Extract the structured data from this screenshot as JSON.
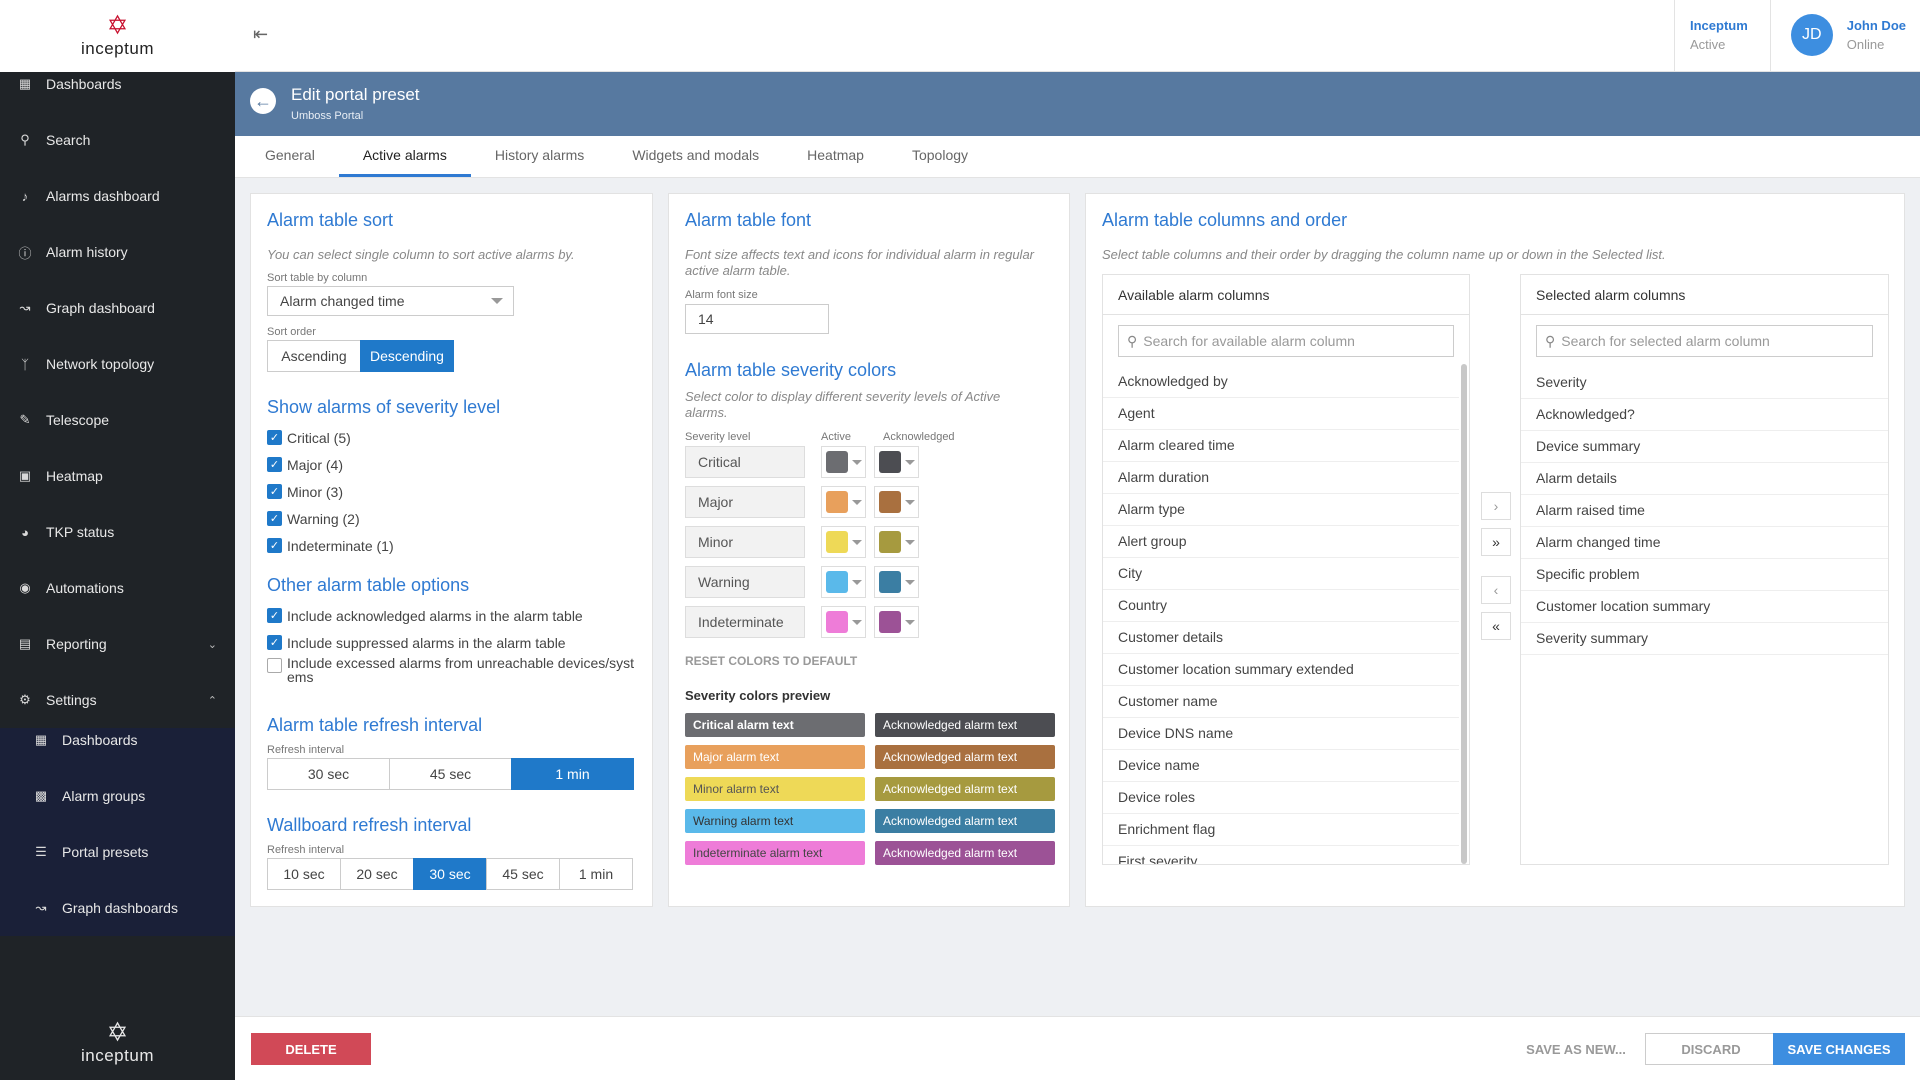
{
  "brand": {
    "logo_text": "inceptum"
  },
  "sidebar": {
    "items": [
      {
        "label": "Dashboards",
        "icon": "grid-icon"
      },
      {
        "label": "Search",
        "icon": "search-icon"
      },
      {
        "label": "Alarms dashboard",
        "icon": "bell-icon"
      },
      {
        "label": "Alarm history",
        "icon": "info-icon"
      },
      {
        "label": "Graph dashboard",
        "icon": "chart-icon"
      },
      {
        "label": "Network topology",
        "icon": "topology-icon"
      },
      {
        "label": "Telescope",
        "icon": "telescope-icon"
      },
      {
        "label": "Heatmap",
        "icon": "map-icon"
      },
      {
        "label": "TKP status",
        "icon": "gauge-icon"
      },
      {
        "label": "Automations",
        "icon": "target-icon"
      },
      {
        "label": "Reporting",
        "icon": "file-icon"
      },
      {
        "label": "Settings",
        "icon": "gear-icon"
      }
    ],
    "settings_sub": [
      {
        "label": "Dashboards",
        "icon": "grid-icon"
      },
      {
        "label": "Alarm groups",
        "icon": "group-icon"
      },
      {
        "label": "Portal presets",
        "icon": "sliders-icon"
      },
      {
        "label": "Graph dashboards",
        "icon": "chart-icon"
      }
    ]
  },
  "topbar": {
    "tenant_name": "Inceptum",
    "tenant_status": "Active",
    "user_initials": "JD",
    "user_name": "John Doe",
    "user_status": "Online"
  },
  "header": {
    "title": "Edit portal preset",
    "subtitle": "Umboss Portal"
  },
  "tabs": [
    "General",
    "Active alarms",
    "History alarms",
    "Widgets and modals",
    "Heatmap",
    "Topology"
  ],
  "sort": {
    "title": "Alarm table sort",
    "desc": "You can select single column to sort active alarms by.",
    "column_label": "Sort table by column",
    "column_value": "Alarm changed time",
    "order_label": "Sort order",
    "asc": "Ascending",
    "desc_btn": "Descending"
  },
  "severity_filter": {
    "title": "Show alarms of severity level",
    "items": [
      "Critical (5)",
      "Major (4)",
      "Minor (3)",
      "Warning (2)",
      "Indeterminate (1)"
    ]
  },
  "other_options": {
    "title": "Other alarm table options",
    "items": [
      "Include acknowledged alarms in the alarm table",
      "Include suppressed alarms in the alarm table",
      "Include excessed alarms from unreachable devices/systems"
    ]
  },
  "refresh": {
    "title": "Alarm table refresh interval",
    "label": "Refresh interval",
    "options": [
      "30 sec",
      "45 sec",
      "1 min"
    ]
  },
  "wallboard": {
    "title": "Wallboard refresh interval",
    "label": "Refresh interval",
    "options": [
      "10 sec",
      "20 sec",
      "30 sec",
      "45 sec",
      "1 min"
    ]
  },
  "font": {
    "title": "Alarm table font",
    "desc": "Font size affects text and icons for individual alarm in regular active alarm table.",
    "label": "Alarm font size",
    "value": "14"
  },
  "colors": {
    "title": "Alarm table severity colors",
    "desc": "Select color to display different severity levels of Active alarms.",
    "col_level": "Severity level",
    "col_active": "Active",
    "col_ack": "Acknowledged",
    "rows": [
      {
        "name": "Critical",
        "active": "#6c6d71",
        "ack": "#4c4d52"
      },
      {
        "name": "Major",
        "active": "#e8a05c",
        "ack": "#a9703f"
      },
      {
        "name": "Minor",
        "active": "#eed957",
        "ack": "#a69a3f"
      },
      {
        "name": "Warning",
        "active": "#5ab9ea",
        "ack": "#3b7ea3"
      },
      {
        "name": "Indeterminate",
        "active": "#ee7cd8",
        "ack": "#9c5296"
      }
    ],
    "reset": "RESET COLORS TO DEFAULT",
    "preview_title": "Severity colors preview",
    "preview": [
      {
        "active_text": "Critical alarm text",
        "ack_text": "Acknowledged alarm text"
      },
      {
        "active_text": "Major alarm text",
        "ack_text": "Acknowledged alarm text"
      },
      {
        "active_text": "Minor alarm text",
        "ack_text": "Acknowledged alarm text"
      },
      {
        "active_text": "Warning alarm text",
        "ack_text": "Acknowledged alarm text"
      },
      {
        "active_text": "Indeterminate alarm text",
        "ack_text": "Acknowledged alarm text"
      }
    ]
  },
  "columns": {
    "title": "Alarm table columns and order",
    "desc": "Select table columns and their order by dragging the column name up or down in the Selected list.",
    "available_title": "Available alarm columns",
    "available_placeholder": "Search for available alarm column",
    "available": [
      "Acknowledged by",
      "Agent",
      "Alarm cleared time",
      "Alarm duration",
      "Alarm type",
      "Alert group",
      "City",
      "Country",
      "Customer details",
      "Customer location summary extended",
      "Customer name",
      "Device DNS name",
      "Device name",
      "Device roles",
      "Enrichment flag",
      "First severity"
    ],
    "selected_title": "Selected alarm columns",
    "selected_placeholder": "Search for selected alarm column",
    "selected": [
      "Severity",
      "Acknowledged?",
      "Device summary",
      "Alarm details",
      "Alarm raised time",
      "Alarm changed time",
      "Specific problem",
      "Customer location summary",
      "Severity summary"
    ]
  },
  "footer": {
    "delete": "DELETE",
    "save_as": "SAVE AS NEW...",
    "discard": "DISCARD",
    "save": "SAVE CHANGES"
  }
}
